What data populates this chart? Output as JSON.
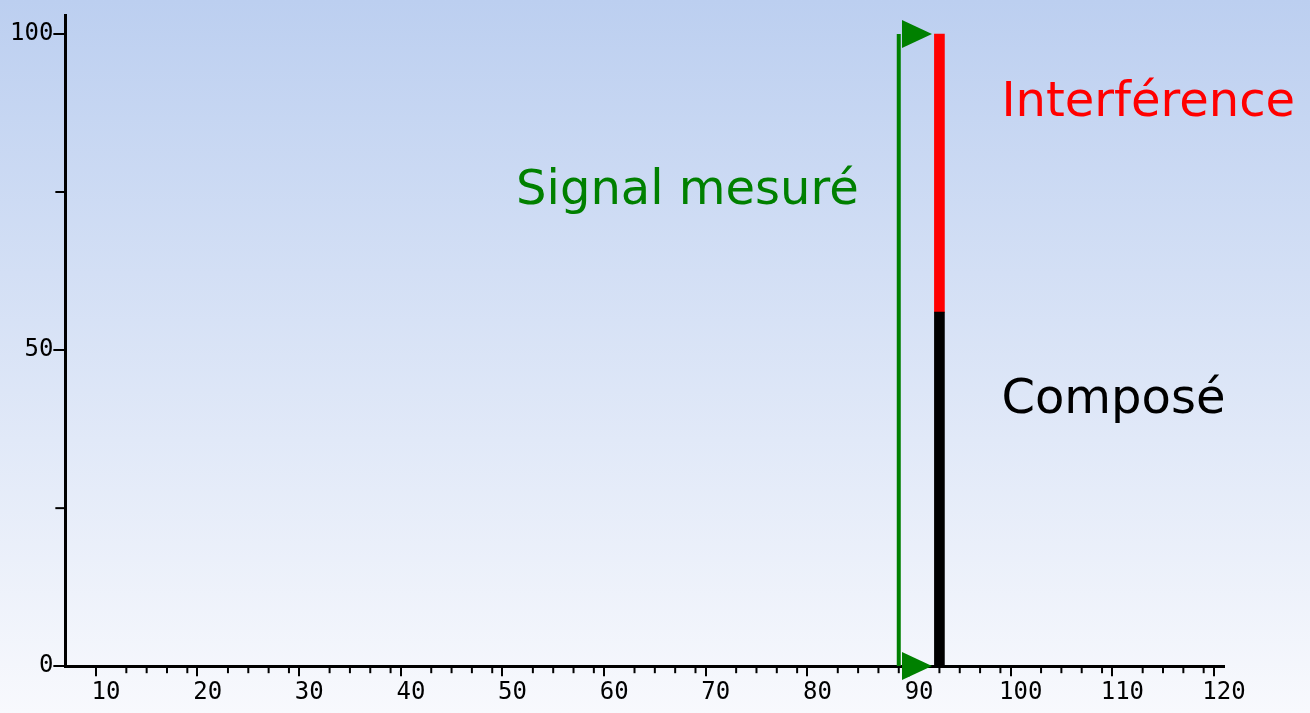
{
  "chart_data": {
    "type": "bar",
    "stacked": true,
    "x": [
      92
    ],
    "series": [
      {
        "name": "Composé",
        "color": "#000000",
        "values": [
          56
        ]
      },
      {
        "name": "Interférence",
        "color": "#ff0000",
        "values": [
          44
        ]
      },
      {
        "name": "Signal mesuré",
        "type": "line",
        "color": "#008000",
        "x": [
          88,
          88
        ],
        "values": [
          0,
          100
        ]
      }
    ],
    "xlim": [
      6,
      120
    ],
    "xticks": [
      10,
      {
        "value": 12,
        "label": null
      },
      {
        "value": 14,
        "label": null
      },
      {
        "value": 16,
        "label": null
      },
      {
        "value": 18,
        "label": null
      },
      20,
      {
        "value": 22,
        "label": null
      },
      {
        "value": 24,
        "label": null
      },
      {
        "value": 26,
        "label": null
      },
      {
        "value": 28,
        "label": null
      },
      30,
      {
        "value": 32,
        "label": null
      },
      {
        "value": 34,
        "label": null
      },
      {
        "value": 36,
        "label": null
      },
      {
        "value": 38,
        "label": null
      },
      40,
      {
        "value": 42,
        "label": null
      },
      {
        "value": 44,
        "label": null
      },
      {
        "value": 46,
        "label": null
      },
      {
        "value": 48,
        "label": null
      },
      50,
      {
        "value": 52,
        "label": null
      },
      {
        "value": 54,
        "label": null
      },
      {
        "value": 56,
        "label": null
      },
      {
        "value": 58,
        "label": null
      },
      60,
      {
        "value": 62,
        "label": null
      },
      {
        "value": 64,
        "label": null
      },
      {
        "value": 66,
        "label": null
      },
      {
        "value": 68,
        "label": null
      },
      70,
      {
        "value": 72,
        "label": null
      },
      {
        "value": 74,
        "label": null
      },
      {
        "value": 76,
        "label": null
      },
      {
        "value": 78,
        "label": null
      },
      80,
      {
        "value": 82,
        "label": null
      },
      {
        "value": 84,
        "label": null
      },
      {
        "value": 86,
        "label": null
      },
      {
        "value": 88,
        "label": null
      },
      90,
      {
        "value": 92,
        "label": null
      },
      {
        "value": 94,
        "label": null
      },
      {
        "value": 96,
        "label": null
      },
      {
        "value": 98,
        "label": null
      },
      100,
      {
        "value": 102,
        "label": null
      },
      {
        "value": 104,
        "label": null
      },
      {
        "value": 106,
        "label": null
      },
      {
        "value": 108,
        "label": null
      },
      110,
      {
        "value": 112,
        "label": null
      },
      {
        "value": 114,
        "label": null
      },
      {
        "value": 116,
        "label": null
      },
      {
        "value": 118,
        "label": null
      },
      120
    ],
    "ylim": [
      0,
      103
    ],
    "yticks": [
      0,
      {
        "value": 25,
        "label": null
      },
      50,
      {
        "value": 75,
        "label": null
      },
      100
    ],
    "grid": false,
    "legend": false,
    "marker": "none",
    "line_style": "solid"
  }
}
